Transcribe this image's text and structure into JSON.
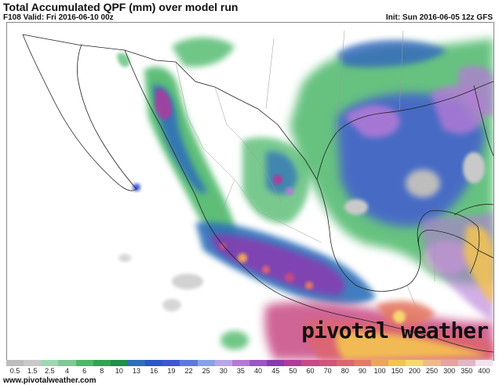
{
  "header": {
    "title": "Total Accumulated QPF (mm) over model run",
    "valid": "F108 Valid: Fri 2016-06-10 00z",
    "init": "Init: Sun 2016-06-05 12z GFS"
  },
  "map": {
    "brand": "pivotal weather"
  },
  "legend": {
    "labels": [
      "0.5",
      "1.5",
      "2.5",
      "4",
      "6",
      "8",
      "10",
      "13",
      "16",
      "19",
      "22",
      "25",
      "30",
      "35",
      "40",
      "45",
      "50",
      "60",
      "70",
      "80",
      "90",
      "100",
      "150",
      "200",
      "250",
      "300",
      "350",
      "400"
    ],
    "colors": [
      "#bdbdbd",
      "#c9c9c9",
      "#9fd8b0",
      "#7ec995",
      "#4db86a",
      "#2fa455",
      "#1f8f4a",
      "#2e6fb9",
      "#2a58c8",
      "#3f56d6",
      "#5f78e0",
      "#8aa0ea",
      "#b9a6e6",
      "#b57ad7",
      "#9d55c6",
      "#8a3bb0",
      "#b03a9c",
      "#c74a84",
      "#d2547a",
      "#dc6670",
      "#e57a62",
      "#efa45a",
      "#f5c451",
      "#f7d870",
      "#f3b98a",
      "#e8a3a0",
      "#e0b7c7",
      "#f2e3ec"
    ]
  },
  "footer": {
    "source": "www.pivotalweather.com"
  }
}
